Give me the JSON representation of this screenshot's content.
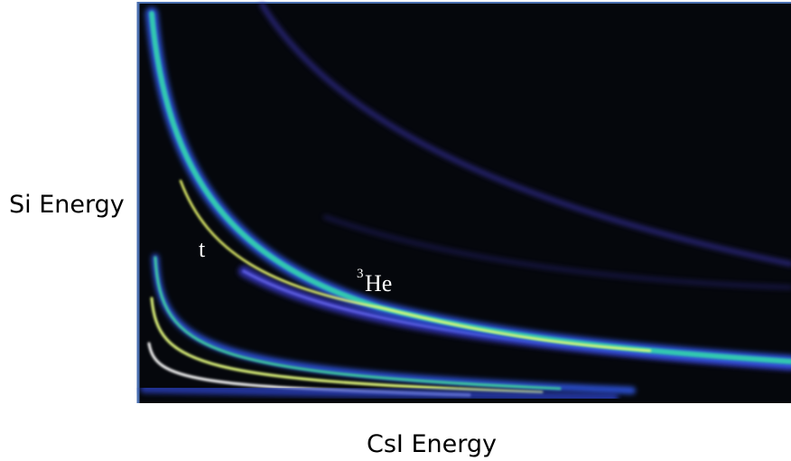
{
  "axes": {
    "y_label": "Si Energy",
    "x_label": "CsI Energy"
  },
  "annotations": [
    {
      "label": "t"
    },
    {
      "superscript": "3",
      "label": "He"
    }
  ]
}
